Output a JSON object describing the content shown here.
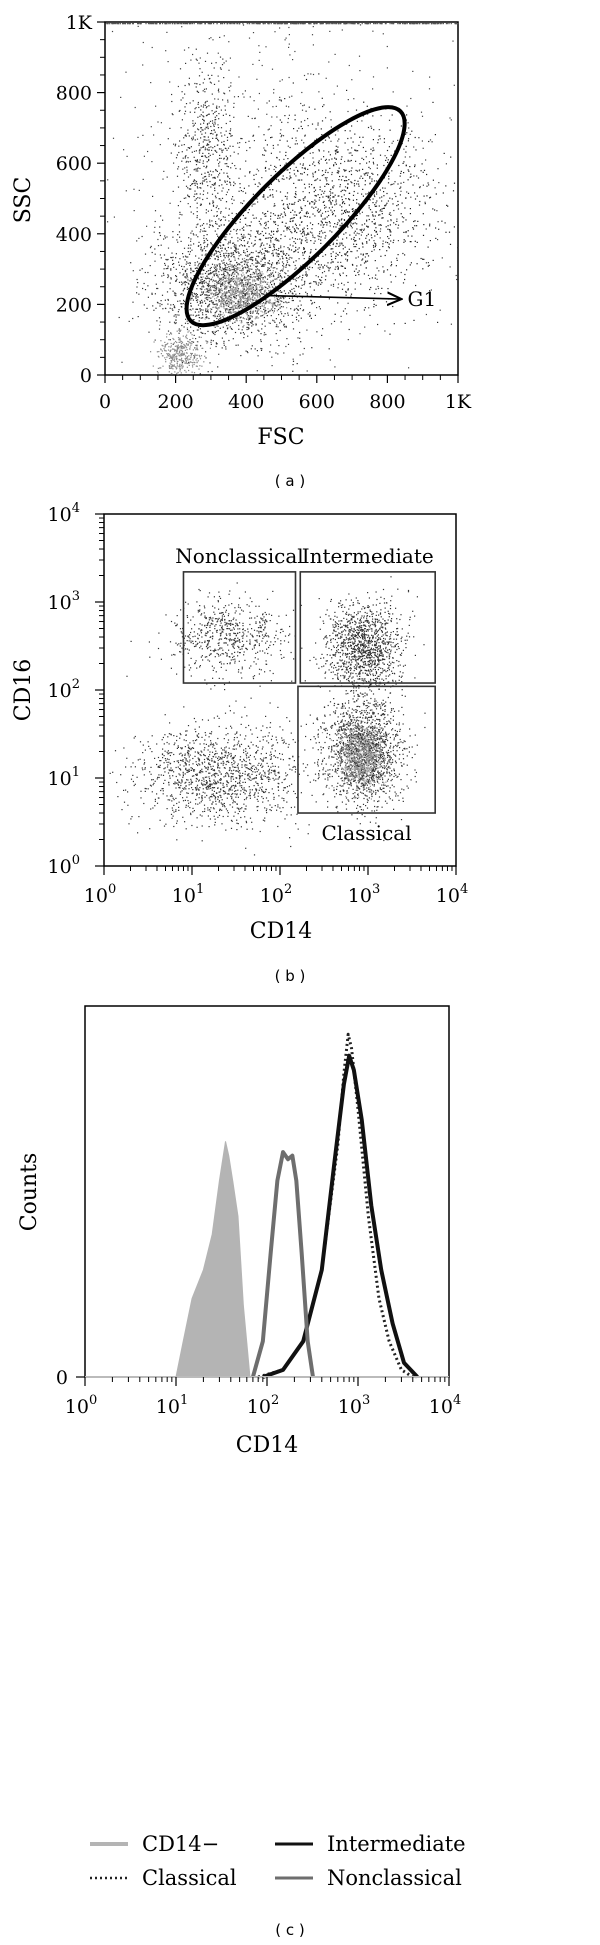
{
  "chart_data": [
    {
      "type": "scatter",
      "panel_label": "( a )",
      "xlabel": "FSC",
      "ylabel": "SSC",
      "xlim": [
        0,
        1000
      ],
      "ylim": [
        0,
        1000
      ],
      "x_ticks": [
        "0",
        "200",
        "400",
        "600",
        "800",
        "1K"
      ],
      "y_ticks": [
        "0",
        "200",
        "400",
        "600",
        "800",
        "1K"
      ],
      "gates": [
        {
          "name": "G1",
          "shape": "ellipse",
          "center": [
            540,
            450
          ],
          "semi_axes": [
            420,
            120
          ],
          "angle_deg": 45
        }
      ],
      "annotations": [
        {
          "text": "G1",
          "arrow_from": [
            460,
            225
          ],
          "arrow_to": [
            840,
            215
          ]
        }
      ]
    },
    {
      "type": "scatter",
      "panel_label": "( b )",
      "xlabel": "CD14",
      "ylabel": "CD16",
      "xscale": "log",
      "yscale": "log",
      "xlim": [
        1,
        10000
      ],
      "ylim": [
        1,
        10000
      ],
      "x_ticks": [
        "10",
        "10",
        "10",
        "10",
        "10"
      ],
      "x_tick_exponents": [
        "0",
        "1",
        "2",
        "3",
        "4"
      ],
      "y_ticks": [
        "10",
        "10",
        "10",
        "10",
        "10"
      ],
      "y_tick_exponents": [
        "0",
        "1",
        "2",
        "3",
        "4"
      ],
      "gates": [
        {
          "name": "Nonclassical",
          "x_range": [
            8,
            150
          ],
          "y_range": [
            120,
            2200
          ]
        },
        {
          "name": "Intermediate",
          "x_range": [
            170,
            5800
          ],
          "y_range": [
            120,
            2200
          ]
        },
        {
          "name": "Classical",
          "x_range": [
            160,
            5800
          ],
          "y_range": [
            4,
            110
          ]
        }
      ]
    },
    {
      "type": "line",
      "panel_label": "( c )",
      "xlabel": "CD14",
      "ylabel": "Counts",
      "xscale": "log",
      "xlim": [
        1,
        10000
      ],
      "x_ticks": [
        "10",
        "10",
        "10",
        "10",
        "10"
      ],
      "x_tick_exponents": [
        "0",
        "1",
        "2",
        "3",
        "4"
      ],
      "y_ticks": [
        "0"
      ],
      "legend_position": "bottom",
      "series": [
        {
          "name": "CD14−",
          "style": "filled",
          "color": "#b4b4b4",
          "x": [
            10,
            12,
            15,
            20,
            25,
            30,
            35,
            38,
            42,
            48,
            55,
            65
          ],
          "y": [
            0,
            0.1,
            0.22,
            0.3,
            0.4,
            0.55,
            0.66,
            0.62,
            0.55,
            0.45,
            0.2,
            0
          ]
        },
        {
          "name": "Classical",
          "style": "dotted",
          "color": "#222222",
          "x": [
            80,
            150,
            250,
            400,
            600,
            700,
            780,
            850,
            1000,
            1300,
            1700,
            2200,
            3000,
            4000
          ],
          "y": [
            0,
            0.02,
            0.1,
            0.3,
            0.65,
            0.85,
            0.96,
            0.92,
            0.75,
            0.45,
            0.22,
            0.1,
            0.02,
            0
          ]
        },
        {
          "name": "Intermediate",
          "style": "solid",
          "color": "#111111",
          "x": [
            90,
            150,
            250,
            400,
            550,
            700,
            800,
            900,
            1100,
            1400,
            1800,
            2400,
            3200,
            4500
          ],
          "y": [
            0,
            0.02,
            0.1,
            0.3,
            0.6,
            0.82,
            0.9,
            0.86,
            0.72,
            0.48,
            0.3,
            0.15,
            0.04,
            0
          ]
        },
        {
          "name": "Nonclassical",
          "style": "solid",
          "color": "#6e6e6e",
          "x": [
            70,
            90,
            110,
            130,
            150,
            170,
            190,
            210,
            240,
            280,
            320
          ],
          "y": [
            0,
            0.1,
            0.35,
            0.55,
            0.63,
            0.61,
            0.62,
            0.55,
            0.35,
            0.1,
            0
          ]
        }
      ],
      "legend": [
        "CD14−",
        "Intermediate",
        "Classical",
        "Nonclassical"
      ]
    }
  ]
}
